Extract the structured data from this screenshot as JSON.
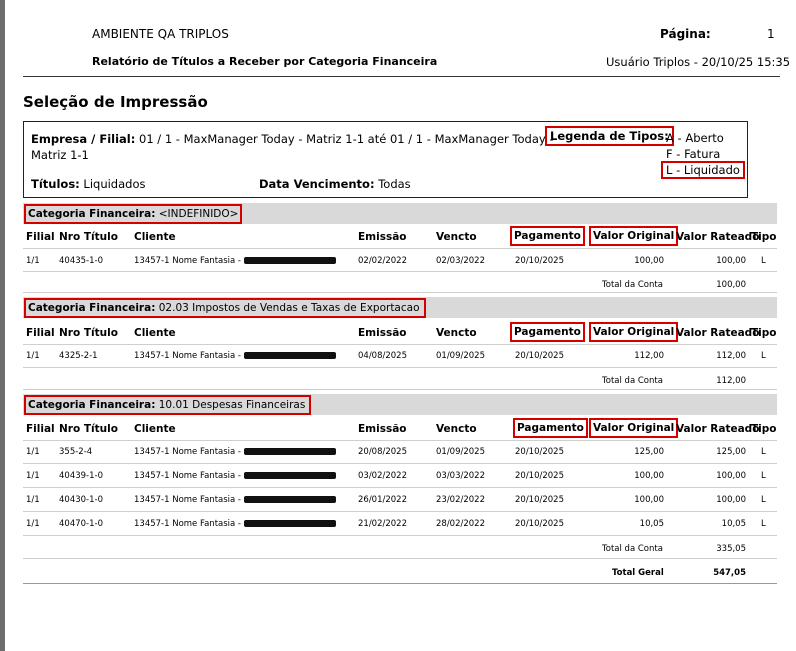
{
  "header": {
    "company": "AMBIENTE QA TRIPLOS",
    "pagina_label": "Página:",
    "pagina_value": "1",
    "report_title": "Relatório de Títulos a Receber por Categoria Financeira",
    "user_datetime": "Usuário Triplos - 20/10/25 15:35"
  },
  "selection": {
    "title": "Seleção de Impressão",
    "empresa_label": "Empresa / Filial:",
    "empresa_value": "01 / 1 - MaxManager Today - Matriz 1-1 até 01 / 1 - MaxManager Today -",
    "empresa_value_2": "Matriz 1-1",
    "titulos_label": "Títulos:",
    "titulos_value": "Liquidados",
    "data_venc_label": "Data Vencimento:",
    "data_venc_value": "Todas",
    "legenda_label": "Legenda de Tipos:",
    "legenda_items": [
      "A - Aberto",
      "F - Fatura",
      "L - Liquidado"
    ]
  },
  "columns": {
    "filial": "Filial",
    "nro_titulo": "Nro Título",
    "cliente": "Cliente",
    "emissao": "Emissão",
    "vencto": "Vencto",
    "pagamento": "Pagamento",
    "valor_original": "Valor Original",
    "valor_rateado": "Valor Rateado",
    "tipo": "Tipo"
  },
  "total_label": "Total da Conta",
  "categories": [
    {
      "label": "Categoria Financeira:",
      "value": "<INDEFINIDO>",
      "rows": [
        {
          "filial": "1/1",
          "nro": "40435-1-0",
          "cliente": "13457-1 Nome Fantasia - ",
          "emissao": "02/02/2022",
          "vencto": "02/03/2022",
          "pagamento": "20/10/2025",
          "valor_original": "100,00",
          "valor_rateado": "100,00",
          "tipo": "L"
        }
      ],
      "total": "100,00"
    },
    {
      "label": "Categoria Financeira:",
      "value": "02.03 Impostos de Vendas e Taxas de Exportacao",
      "rows": [
        {
          "filial": "1/1",
          "nro": "4325-2-1",
          "cliente": "13457-1 Nome Fantasia - ",
          "emissao": "04/08/2025",
          "vencto": "01/09/2025",
          "pagamento": "20/10/2025",
          "valor_original": "112,00",
          "valor_rateado": "112,00",
          "tipo": "L"
        }
      ],
      "total": "112,00"
    },
    {
      "label": "Categoria Financeira:",
      "value": "10.01 Despesas Financeiras",
      "rows": [
        {
          "filial": "1/1",
          "nro": "355-2-4",
          "cliente": "13457-1 Nome Fantasia - ",
          "emissao": "20/08/2025",
          "vencto": "01/09/2025",
          "pagamento": "20/10/2025",
          "valor_original": "125,00",
          "valor_rateado": "125,00",
          "tipo": "L"
        },
        {
          "filial": "1/1",
          "nro": "40439-1-0",
          "cliente": "13457-1 Nome Fantasia - ",
          "emissao": "03/02/2022",
          "vencto": "03/03/2022",
          "pagamento": "20/10/2025",
          "valor_original": "100,00",
          "valor_rateado": "100,00",
          "tipo": "L"
        },
        {
          "filial": "1/1",
          "nro": "40430-1-0",
          "cliente": "13457-1 Nome Fantasia - ",
          "emissao": "26/01/2022",
          "vencto": "23/02/2022",
          "pagamento": "20/10/2025",
          "valor_original": "100,00",
          "valor_rateado": "100,00",
          "tipo": "L"
        },
        {
          "filial": "1/1",
          "nro": "40470-1-0",
          "cliente": "13457-1 Nome Fantasia - ",
          "emissao": "21/02/2022",
          "vencto": "28/02/2022",
          "pagamento": "20/10/2025",
          "valor_original": "10,05",
          "valor_rateado": "10,05",
          "tipo": "L"
        }
      ],
      "total": "335,05"
    }
  ],
  "grand_total": {
    "label": "Total Geral",
    "value": "547,05"
  },
  "colors": {
    "highlight_red": "#d40000",
    "category_bar": "#d9d9d9"
  }
}
